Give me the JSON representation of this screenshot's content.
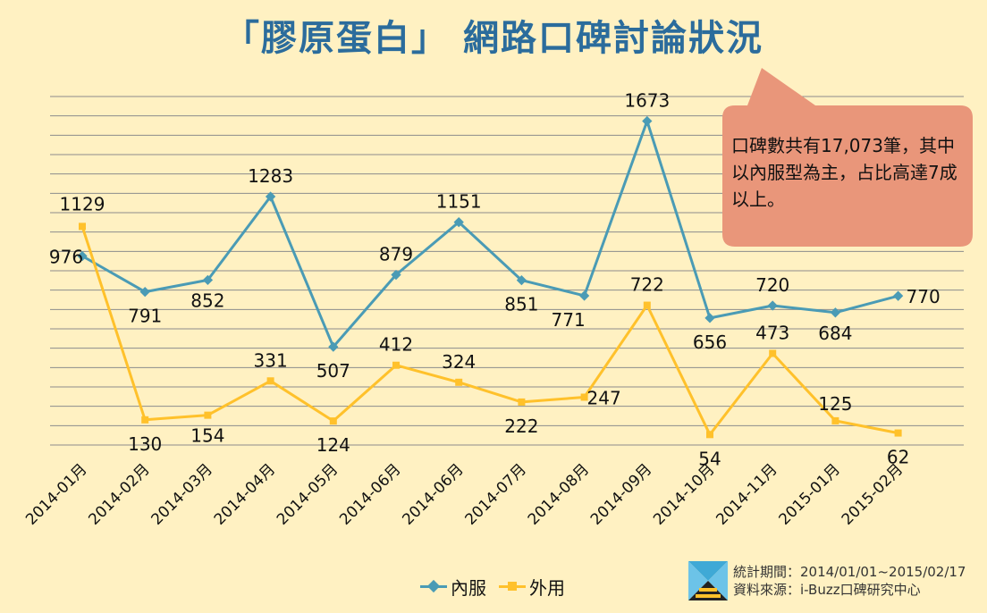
{
  "title": "「膠原蛋白」 網路口碑討論狀況",
  "callout": "口碑數共有17,073筆，其中以內服型為主，占比高達7成以上。",
  "legend": {
    "series1": "內服",
    "series2": "外用"
  },
  "source": {
    "period": "統計期間：2014/01/01~2015/02/17",
    "origin": "資料來源：i-Buzz口碑研究中心"
  },
  "colors": {
    "series1": "#4A9BB5",
    "series2": "#FFC12B",
    "title": "#2B6C9C",
    "callout": "#E9967A",
    "background": "#FFF1C2",
    "grid": "#8C8C8C"
  },
  "chart_data": {
    "type": "line",
    "title": "「膠原蛋白」 網路口碑討論狀況",
    "categories": [
      "2014-01月",
      "2014-02月",
      "2014-03月",
      "2014-04月",
      "2014-05月",
      "2014-06月",
      "2014-06月",
      "2014-07月",
      "2014-08月",
      "2014-09月",
      "2014-10月",
      "2014-11月",
      "2015-01月",
      "2015-02月"
    ],
    "series": [
      {
        "name": "內服",
        "values": [
          976,
          791,
          852,
          1283,
          507,
          879,
          1151,
          851,
          771,
          1673,
          656,
          720,
          684,
          770
        ]
      },
      {
        "name": "外用",
        "values": [
          1129,
          130,
          154,
          331,
          124,
          412,
          324,
          222,
          247,
          722,
          54,
          473,
          125,
          62
        ]
      }
    ],
    "ylim": [
      0,
      1800
    ],
    "grid": true,
    "legend_position": "bottom"
  }
}
